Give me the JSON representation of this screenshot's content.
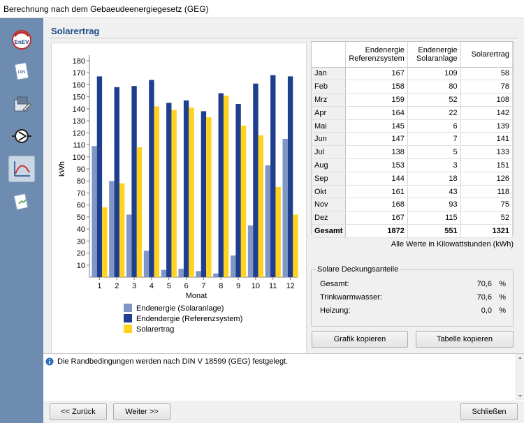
{
  "window": {
    "title": "Berechnung nach dem Gebaeudeenergiegesetz (GEG)"
  },
  "nav": {
    "items": [
      {
        "icon": "enev-icon",
        "label": "EnEV"
      },
      {
        "icon": "din-document-icon",
        "label": "DIN"
      },
      {
        "icon": "building-edit-icon"
      },
      {
        "icon": "pump-icon"
      },
      {
        "icon": "curve-chart-icon"
      },
      {
        "icon": "report-icon"
      }
    ]
  },
  "section": {
    "title": "Solarertrag"
  },
  "colors": {
    "series_solaranlage": "#7f96c6",
    "series_referenz": "#1f3f8e",
    "series_solarertrag": "#ffd21f",
    "title_blue": "#1a4a86"
  },
  "chart_data": {
    "type": "bar",
    "categories": [
      "1",
      "2",
      "3",
      "4",
      "5",
      "6",
      "7",
      "8",
      "9",
      "10",
      "11",
      "12"
    ],
    "series": [
      {
        "name": "Endenergie (Solaranlage)",
        "values": [
          109,
          80,
          52,
          22,
          6,
          7,
          5,
          3,
          18,
          43,
          93,
          115
        ]
      },
      {
        "name": "Endendergie (Referenzsystem)",
        "values": [
          167,
          158,
          159,
          164,
          145,
          147,
          138,
          153,
          144,
          161,
          168,
          167
        ]
      },
      {
        "name": "Solarertrag",
        "values": [
          58,
          78,
          108,
          142,
          139,
          141,
          133,
          151,
          126,
          118,
          75,
          52
        ]
      }
    ],
    "xlabel": "Monat",
    "ylabel": "kWh",
    "ylim": [
      0,
      180
    ],
    "yticks": [
      "10",
      "20",
      "30",
      "40",
      "50",
      "60",
      "70",
      "80",
      "90",
      "100",
      "110",
      "120",
      "130",
      "140",
      "150",
      "160",
      "170",
      "180"
    ],
    "legend_position": "bottom"
  },
  "table": {
    "headers": [
      {
        "line1": "",
        "line2": ""
      },
      {
        "line1": "Endenergie",
        "line2": "Referenzsystem"
      },
      {
        "line1": "Endenergie",
        "line2": "Solaranlage"
      },
      {
        "line1": "Solarertrag",
        "line2": ""
      }
    ],
    "rows": [
      [
        "Jan",
        "167",
        "109",
        "58"
      ],
      [
        "Feb",
        "158",
        "80",
        "78"
      ],
      [
        "Mrz",
        "159",
        "52",
        "108"
      ],
      [
        "Apr",
        "164",
        "22",
        "142"
      ],
      [
        "Mai",
        "145",
        "6",
        "139"
      ],
      [
        "Jun",
        "147",
        "7",
        "141"
      ],
      [
        "Jul",
        "138",
        "5",
        "133"
      ],
      [
        "Aug",
        "153",
        "3",
        "151"
      ],
      [
        "Sep",
        "144",
        "18",
        "126"
      ],
      [
        "Okt",
        "161",
        "43",
        "118"
      ],
      [
        "Nov",
        "168",
        "93",
        "75"
      ],
      [
        "Dez",
        "167",
        "115",
        "52"
      ]
    ],
    "total": [
      "Gesamt",
      "1872",
      "551",
      "1321"
    ]
  },
  "units_note": "Alle Werte in Kilowattstunden (kWh)",
  "coverage": {
    "title": "Solare Deckungsanteile",
    "rows": [
      {
        "label": "Gesamt:",
        "value": "70,6",
        "unit": "%"
      },
      {
        "label": "Trinkwarmwasser:",
        "value": "70,6",
        "unit": "%"
      },
      {
        "label": "Heizung:",
        "value": "0,0",
        "unit": "%"
      }
    ]
  },
  "buttons": {
    "copy_chart": "Grafik kopieren",
    "copy_table": "Tabelle kopieren",
    "back": "<< Zurück",
    "next": "Weiter >>",
    "close": "Schließen"
  },
  "info": {
    "message": "Die Randbedingungen werden nach DIN V 18599 (GEG) festgelegt."
  }
}
